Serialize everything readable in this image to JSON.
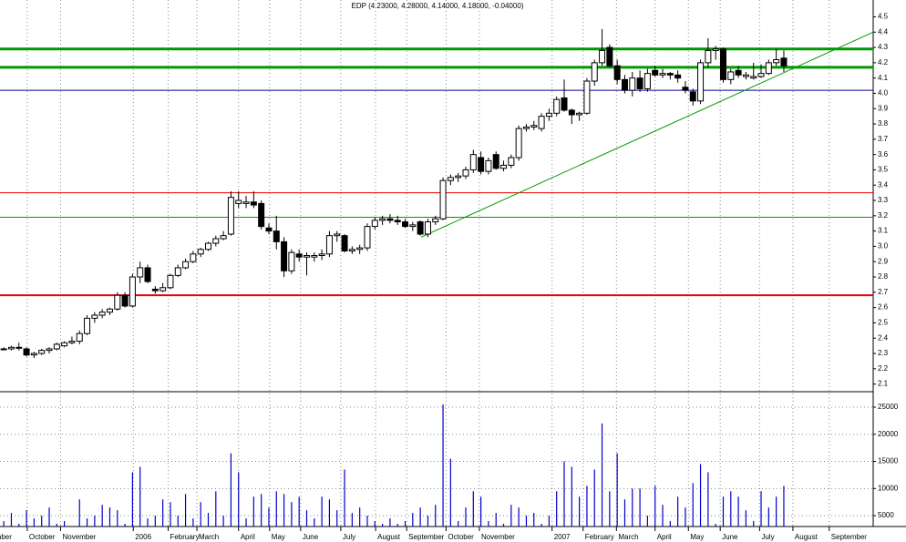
{
  "chart_data": {
    "type": "candlestick",
    "title": "EDP (4.23000, 4.28000, 4.14000, 4.18000, -0.04000)",
    "open": [
      2.33,
      2.33,
      2.34,
      2.33,
      2.29,
      2.3,
      2.32,
      2.33,
      2.35,
      2.37,
      2.38,
      2.43,
      2.53,
      2.55,
      2.57,
      2.59,
      2.68,
      2.61,
      2.8,
      2.86,
      2.72,
      2.71,
      2.73,
      2.81,
      2.86,
      2.9,
      2.95,
      2.98,
      3.02,
      3.05,
      3.08,
      3.28,
      3.28,
      3.29,
      3.28,
      3.12,
      3.1,
      3.03,
      2.84,
      2.95,
      2.93,
      2.93,
      2.94,
      2.95,
      3.07,
      3.07,
      2.97,
      2.98,
      2.99,
      3.13,
      3.17,
      3.18,
      3.17,
      3.16,
      3.13,
      3.16,
      3.08,
      3.16,
      3.18,
      3.43,
      3.45,
      3.46,
      3.5,
      3.58,
      3.49,
      3.6,
      3.51,
      3.53,
      3.58,
      3.77,
      3.78,
      3.77,
      3.85,
      3.87,
      3.97,
      3.89,
      3.86,
      3.87,
      4.08,
      4.2,
      4.3,
      4.18,
      4.09,
      4.02,
      4.1,
      4.03,
      4.15,
      4.12,
      4.13,
      4.12,
      4.04,
      4.01,
      3.95,
      4.2,
      4.28,
      4.29,
      4.09,
      4.15,
      4.11,
      4.1,
      4.11,
      4.13,
      4.2,
      4.23
    ],
    "high": [
      2.34,
      2.35,
      2.37,
      2.34,
      2.31,
      2.33,
      2.34,
      2.37,
      2.38,
      2.41,
      2.45,
      2.55,
      2.57,
      2.59,
      2.6,
      2.7,
      2.7,
      2.82,
      2.9,
      2.88,
      2.74,
      2.76,
      2.82,
      2.88,
      2.92,
      2.97,
      2.99,
      3.03,
      3.07,
      3.1,
      3.36,
      3.36,
      3.33,
      3.36,
      3.3,
      3.15,
      3.2,
      3.06,
      2.98,
      2.98,
      2.96,
      2.96,
      2.98,
      3.1,
      3.1,
      3.08,
      3.0,
      3.01,
      3.15,
      3.19,
      3.2,
      3.21,
      3.2,
      3.18,
      3.16,
      3.17,
      3.18,
      3.2,
      3.45,
      3.47,
      3.48,
      3.52,
      3.63,
      3.62,
      3.58,
      3.62,
      3.56,
      3.6,
      3.79,
      3.8,
      3.82,
      3.87,
      3.9,
      3.98,
      4.09,
      3.9,
      3.88,
      4.1,
      4.22,
      4.42,
      4.32,
      4.22,
      4.12,
      4.14,
      4.15,
      4.16,
      4.18,
      4.16,
      4.14,
      4.15,
      4.08,
      4.03,
      4.22,
      4.36,
      4.31,
      4.3,
      4.16,
      4.18,
      4.14,
      4.2,
      4.19,
      4.22,
      4.29,
      4.28
    ],
    "low": [
      2.32,
      2.32,
      2.32,
      2.28,
      2.27,
      2.29,
      2.3,
      2.32,
      2.34,
      2.36,
      2.36,
      2.42,
      2.5,
      2.53,
      2.55,
      2.58,
      2.6,
      2.6,
      2.76,
      2.76,
      2.69,
      2.7,
      2.72,
      2.8,
      2.85,
      2.89,
      2.93,
      2.97,
      3.0,
      3.04,
      3.07,
      3.25,
      3.25,
      3.25,
      3.11,
      3.08,
      2.98,
      2.8,
      2.82,
      2.9,
      2.81,
      2.9,
      2.91,
      2.93,
      3.03,
      2.96,
      2.95,
      2.95,
      2.97,
      3.11,
      3.14,
      3.15,
      3.14,
      3.12,
      3.1,
      3.07,
      3.06,
      3.14,
      3.17,
      3.4,
      3.42,
      3.44,
      3.48,
      3.47,
      3.47,
      3.5,
      3.49,
      3.51,
      3.56,
      3.75,
      3.76,
      3.75,
      3.82,
      3.85,
      3.88,
      3.8,
      3.82,
      3.86,
      4.05,
      4.18,
      4.17,
      4.06,
      4.0,
      3.98,
      4.01,
      4.01,
      4.11,
      4.1,
      4.09,
      4.07,
      4.0,
      3.92,
      3.93,
      4.17,
      4.22,
      4.07,
      4.06,
      4.1,
      4.09,
      4.09,
      4.1,
      4.12,
      4.18,
      4.14
    ],
    "close": [
      2.33,
      2.34,
      2.34,
      2.29,
      2.3,
      2.32,
      2.33,
      2.36,
      2.37,
      2.38,
      2.43,
      2.53,
      2.55,
      2.57,
      2.59,
      2.68,
      2.61,
      2.8,
      2.86,
      2.77,
      2.71,
      2.73,
      2.81,
      2.86,
      2.9,
      2.95,
      2.98,
      3.02,
      3.05,
      3.07,
      3.32,
      3.3,
      3.29,
      3.27,
      3.13,
      3.1,
      3.03,
      2.84,
      2.96,
      2.93,
      2.94,
      2.94,
      2.95,
      3.07,
      3.08,
      2.97,
      2.98,
      2.99,
      3.13,
      3.17,
      3.18,
      3.17,
      3.16,
      3.13,
      3.14,
      3.08,
      3.16,
      3.18,
      3.43,
      3.45,
      3.46,
      3.5,
      3.6,
      3.49,
      3.56,
      3.51,
      3.53,
      3.58,
      3.77,
      3.78,
      3.79,
      3.85,
      3.87,
      3.96,
      3.89,
      3.86,
      3.87,
      4.08,
      4.2,
      4.28,
      4.18,
      4.09,
      4.02,
      4.1,
      4.03,
      4.13,
      4.12,
      4.13,
      4.12,
      4.1,
      4.02,
      3.95,
      4.2,
      4.28,
      4.29,
      4.09,
      4.14,
      4.12,
      4.12,
      4.11,
      4.13,
      4.2,
      4.22,
      4.18
    ],
    "xlim": [
      -0.5,
      114.8
    ],
    "xticks": [
      {
        "value": -3.9,
        "label": "September"
      },
      {
        "value": 3.1,
        "label": "October"
      },
      {
        "value": 7.5,
        "label": "November"
      },
      {
        "value": 17.1,
        "label": "2006"
      },
      {
        "value": 21.7,
        "label": "February"
      },
      {
        "value": 25.5,
        "label": "March"
      },
      {
        "value": 31.0,
        "label": "April"
      },
      {
        "value": 35.1,
        "label": "May"
      },
      {
        "value": 39.2,
        "label": "June"
      },
      {
        "value": 44.5,
        "label": "July"
      },
      {
        "value": 49.1,
        "label": "August"
      },
      {
        "value": 53.2,
        "label": "September"
      },
      {
        "value": 58.4,
        "label": "October"
      },
      {
        "value": 62.8,
        "label": "November"
      },
      {
        "value": 72.4,
        "label": "2007"
      },
      {
        "value": 76.5,
        "label": "February"
      },
      {
        "value": 80.9,
        "label": "March"
      },
      {
        "value": 86.0,
        "label": "April"
      },
      {
        "value": 90.4,
        "label": "May"
      },
      {
        "value": 94.6,
        "label": "June"
      },
      {
        "value": 99.8,
        "label": "July"
      },
      {
        "value": 104.2,
        "label": "August"
      },
      {
        "value": 109.0,
        "label": "September"
      }
    ],
    "ylim": [
      2.05,
      4.61
    ],
    "yticks": [
      2.1,
      2.2,
      2.3,
      2.4,
      2.5,
      2.6,
      2.7,
      2.8,
      2.9,
      {
        "value": 3,
        "label": "3.0"
      },
      3.1,
      3.2,
      3.3,
      3.4,
      3.5,
      3.6,
      3.7,
      3.8,
      3.9,
      {
        "value": 4,
        "label": "4.0"
      },
      4.1,
      4.2,
      4.3,
      4.4,
      4.5
    ],
    "levels": [
      {
        "value": 4.29,
        "color": "#009900",
        "width": 3
      },
      {
        "value": 4.17,
        "color": "#009900",
        "width": 3
      },
      {
        "value": 4.02,
        "color": "#000099",
        "width": 1
      },
      {
        "value": 3.35,
        "color": "#ee0000",
        "width": 1
      },
      {
        "value": 3.19,
        "color": "#009900",
        "width": 1
      },
      {
        "value": 2.68,
        "color": "#ee0000",
        "width": 2
      }
    ],
    "trendline": {
      "x": [
        55.1,
        114.8
      ],
      "values": [
        3.06,
        4.4
      ],
      "color": "#009900"
    },
    "volume": {
      "values": [
        4000,
        5500,
        3500,
        6000,
        4500,
        5000,
        6500,
        3500,
        4000,
        3000,
        8000,
        4500,
        5000,
        7000,
        6500,
        6000,
        3500,
        13000,
        14000,
        4500,
        5000,
        8000,
        7500,
        5000,
        9000,
        4500,
        7500,
        5500,
        9500,
        5000,
        16500,
        13000,
        4500,
        8500,
        9000,
        6500,
        9500,
        9000,
        7500,
        8500,
        6000,
        4500,
        8500,
        8000,
        6000,
        13500,
        5500,
        6500,
        5000,
        4000,
        3500,
        4500,
        3500,
        4000,
        5500,
        6500,
        5000,
        7000,
        25500,
        15500,
        4000,
        6500,
        9500,
        8500,
        4000,
        5500,
        3500,
        7000,
        6500,
        5000,
        5500,
        3500,
        5000,
        9500,
        15000,
        14000,
        8500,
        10500,
        13500,
        22000,
        9500,
        16500,
        8000,
        10000,
        10000,
        5000,
        10500,
        7000,
        4000,
        8500,
        6500,
        11000,
        14500,
        13000,
        3500,
        8500,
        9500,
        8500,
        6000,
        4000,
        9500,
        6500,
        8500,
        10500
      ],
      "color": "#0000cc",
      "ylim": [
        3000,
        27350
      ],
      "yticks": [
        5000,
        10000,
        15000,
        20000,
        25000
      ]
    }
  }
}
